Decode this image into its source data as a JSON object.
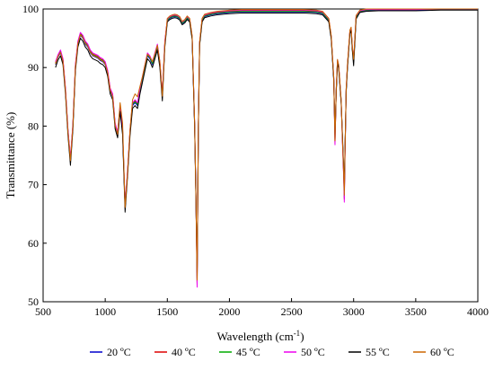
{
  "chart_data": {
    "type": "line",
    "title": "",
    "xlabel": "Wavelength (cm",
    "xlabel_sup": "-1",
    "xlabel_suffix": ")",
    "ylabel": "Transmittance (%)",
    "xlim": [
      500,
      4000
    ],
    "ylim": [
      50,
      100
    ],
    "x_ticks": [
      500,
      1000,
      1500,
      2000,
      2500,
      3000,
      3500,
      4000
    ],
    "y_ticks": [
      50,
      60,
      70,
      80,
      90,
      100
    ],
    "grid": false,
    "legend_position": "bottom",
    "x": [
      600,
      620,
      640,
      660,
      680,
      700,
      720,
      740,
      760,
      780,
      800,
      820,
      840,
      860,
      880,
      900,
      920,
      940,
      960,
      980,
      1000,
      1020,
      1040,
      1060,
      1080,
      1100,
      1120,
      1140,
      1160,
      1180,
      1200,
      1220,
      1240,
      1260,
      1280,
      1300,
      1320,
      1340,
      1360,
      1380,
      1400,
      1420,
      1440,
      1460,
      1480,
      1500,
      1520,
      1540,
      1560,
      1580,
      1600,
      1620,
      1640,
      1660,
      1680,
      1700,
      1720,
      1730,
      1740,
      1750,
      1760,
      1780,
      1800,
      1850,
      1900,
      2000,
      2100,
      2200,
      2300,
      2400,
      2500,
      2600,
      2700,
      2750,
      2800,
      2820,
      2840,
      2850,
      2860,
      2870,
      2880,
      2900,
      2910,
      2920,
      2925,
      2930,
      2940,
      2950,
      2960,
      2970,
      2980,
      2990,
      3000,
      3020,
      3050,
      3100,
      3200,
      3300,
      3500,
      3700,
      4000
    ],
    "series": [
      {
        "name": "20 ºC",
        "color": "#0000cc",
        "values": [
          90.5,
          91.8,
          92.5,
          91,
          86,
          79,
          74,
          80,
          90,
          94,
          95.5,
          95,
          94,
          93.5,
          92.5,
          92,
          91.8,
          91.6,
          91.2,
          91,
          90.5,
          89,
          86,
          85,
          80,
          78.5,
          83,
          79,
          66,
          72,
          79,
          83.5,
          84,
          83.5,
          86,
          88,
          90,
          92,
          91.5,
          90.5,
          92,
          93.5,
          90.5,
          85,
          94,
          98,
          98.4,
          98.6,
          98.7,
          98.6,
          98.3,
          97.5,
          97.8,
          98.4,
          98,
          95,
          80,
          68,
          54,
          80,
          94,
          98,
          98.7,
          99,
          99.2,
          99.4,
          99.5,
          99.5,
          99.5,
          99.5,
          99.5,
          99.5,
          99.4,
          99.2,
          98,
          95,
          88,
          78,
          86,
          91,
          90,
          84,
          78,
          72,
          68.5,
          75,
          86,
          90,
          93,
          96,
          96.5,
          93,
          91,
          98.5,
          99.5,
          99.7,
          99.8,
          99.8,
          99.8,
          99.9,
          99.9
        ]
      },
      {
        "name": "40 ºC",
        "color": "#dd0000",
        "values": [
          90.8,
          92,
          92.8,
          91.3,
          86.3,
          79.3,
          74.3,
          80.3,
          90.3,
          94.3,
          95.8,
          95.3,
          94.3,
          93.8,
          92.8,
          92.3,
          92.1,
          91.9,
          91.5,
          91.3,
          90.8,
          89.3,
          86.3,
          85.3,
          80.3,
          78.8,
          83.3,
          79.3,
          66.3,
          72.3,
          79.3,
          83.8,
          84.3,
          83.8,
          86.3,
          88.3,
          90.3,
          92.3,
          91.8,
          90.8,
          92.3,
          93.8,
          90.8,
          85.3,
          94.3,
          98.2,
          98.6,
          98.8,
          98.9,
          98.8,
          98.5,
          97.7,
          98,
          98.6,
          98.2,
          95.2,
          80.2,
          68.2,
          53,
          80.2,
          94.2,
          98.2,
          98.9,
          99.2,
          99.4,
          99.6,
          99.7,
          99.7,
          99.7,
          99.7,
          99.7,
          99.7,
          99.6,
          99.4,
          98.2,
          95.2,
          88.2,
          77,
          86.2,
          91.2,
          90.2,
          84.2,
          77.5,
          71.5,
          67.5,
          74.5,
          86.2,
          90.2,
          93.2,
          96.2,
          96.7,
          93.2,
          91.2,
          98.7,
          99.6,
          99.8,
          99.9,
          99.9,
          99.9,
          100,
          100
        ]
      },
      {
        "name": "45 ºC",
        "color": "#00aa00",
        "values": [
          90.7,
          91.9,
          92.7,
          91.2,
          86.2,
          79.2,
          74.2,
          80.2,
          90.2,
          94.2,
          95.7,
          95.2,
          94.2,
          93.7,
          92.7,
          92.2,
          92,
          91.8,
          91.4,
          91.2,
          90.7,
          89.2,
          86.2,
          85.2,
          80.2,
          78.7,
          83.2,
          79.2,
          66.2,
          72.2,
          79.2,
          83.7,
          84.2,
          83.7,
          86.2,
          88.2,
          90.2,
          92.2,
          91.7,
          90.7,
          92.2,
          93.7,
          90.7,
          85.2,
          94.2,
          98.1,
          98.5,
          98.7,
          98.8,
          98.7,
          98.4,
          97.6,
          97.9,
          98.5,
          98.1,
          95.1,
          80.1,
          68.1,
          53.3,
          80.1,
          94.1,
          98.1,
          98.8,
          99.1,
          99.3,
          99.5,
          99.6,
          99.6,
          99.6,
          99.6,
          99.6,
          99.6,
          99.5,
          99.3,
          98.1,
          95.1,
          88.1,
          77.3,
          86.1,
          91.1,
          90.1,
          84.1,
          77.7,
          71.7,
          67.8,
          74.7,
          86.1,
          90.1,
          93.1,
          96.1,
          96.6,
          93.1,
          91.1,
          98.6,
          99.6,
          99.8,
          99.9,
          99.9,
          99.9,
          100,
          100
        ]
      },
      {
        "name": "50 ºC",
        "color": "#ee00ee",
        "values": [
          91,
          92.2,
          93,
          91.5,
          86.5,
          79.5,
          74.5,
          80.5,
          90.5,
          94.5,
          96,
          95.5,
          94.5,
          94,
          93,
          92.5,
          92.3,
          92.1,
          91.7,
          91.5,
          91,
          89.5,
          86.5,
          85.5,
          80.5,
          79,
          83.5,
          79.5,
          66.5,
          72.5,
          79.5,
          84,
          84.5,
          84,
          86.5,
          88.5,
          90.5,
          92.5,
          92,
          91,
          92.5,
          94,
          91,
          85.5,
          94.5,
          98.3,
          98.7,
          98.9,
          99,
          98.9,
          98.6,
          97.8,
          98.1,
          98.7,
          98.3,
          95.3,
          80.3,
          68.3,
          52.5,
          80.3,
          94.3,
          98.3,
          99,
          99.3,
          99.5,
          99.7,
          99.8,
          99.8,
          99.8,
          99.8,
          99.8,
          99.8,
          99.7,
          99.5,
          98.3,
          95.3,
          88.3,
          76.8,
          86.3,
          91.3,
          90.3,
          84.3,
          77.3,
          71.2,
          67,
          74.2,
          86.3,
          90.3,
          93.3,
          96.3,
          96.8,
          93.3,
          91.3,
          98.8,
          99.7,
          99.9,
          99.9,
          99.9,
          99.9,
          100,
          100
        ]
      },
      {
        "name": "55 ºC",
        "color": "#000000",
        "values": [
          90,
          91.3,
          92,
          90.5,
          85.5,
          78.5,
          73.3,
          79.5,
          89.5,
          93.5,
          95,
          94.5,
          93.5,
          93,
          92,
          91.5,
          91.3,
          91.1,
          90.7,
          90.5,
          90,
          88.5,
          85.5,
          84.5,
          79.5,
          78,
          82.5,
          78.5,
          65.3,
          71.5,
          78.5,
          83,
          83.5,
          83,
          85.5,
          87.5,
          89.5,
          91.5,
          91,
          90,
          91.5,
          93,
          90,
          84.3,
          93.5,
          97.8,
          98.2,
          98.4,
          98.5,
          98.4,
          98.1,
          97.3,
          97.6,
          98.2,
          97.8,
          94.8,
          79.8,
          67.8,
          55,
          79.8,
          93.8,
          97.8,
          98.5,
          98.8,
          99,
          99.2,
          99.3,
          99.3,
          99.3,
          99.3,
          99.3,
          99.3,
          99.2,
          99,
          97.8,
          94.8,
          87.8,
          78.5,
          85.8,
          90.8,
          89.8,
          83.8,
          78.5,
          72.5,
          69,
          75.5,
          85.8,
          89.8,
          92.8,
          95.8,
          96.3,
          92.8,
          90.3,
          98.3,
          99.4,
          99.6,
          99.7,
          99.7,
          99.7,
          99.8,
          99.8
        ]
      },
      {
        "name": "60 ºC",
        "color": "#cc6600",
        "values": [
          90.6,
          91.9,
          92.6,
          91.1,
          86.1,
          79.1,
          74.1,
          80.1,
          90.1,
          94.1,
          95.6,
          95.1,
          94.1,
          93.6,
          92.6,
          92.1,
          91.9,
          91.7,
          91.3,
          91.1,
          90.6,
          89.1,
          86.1,
          85.1,
          80.1,
          78.6,
          84,
          80.5,
          66.1,
          72.1,
          79.5,
          84.5,
          85.5,
          85,
          86.8,
          88.5,
          90.5,
          92.3,
          91.8,
          91,
          92.3,
          93.8,
          91,
          85.1,
          94.1,
          98.4,
          98.8,
          99,
          99.1,
          99,
          98.7,
          97.9,
          98.2,
          98.8,
          98.4,
          95.4,
          80.4,
          68.4,
          53.7,
          80.4,
          94.4,
          98.4,
          99.1,
          99.4,
          99.6,
          99.8,
          99.9,
          99.9,
          99.9,
          99.9,
          99.9,
          99.9,
          99.8,
          99.6,
          98.4,
          95.4,
          88.4,
          77.5,
          86.4,
          91.4,
          90.4,
          84.4,
          77.8,
          72,
          68.2,
          75,
          86.4,
          90.4,
          93.4,
          96.4,
          96.9,
          93.4,
          91.4,
          98.9,
          99.8,
          100,
          100,
          100,
          100,
          100,
          100
        ]
      }
    ]
  }
}
